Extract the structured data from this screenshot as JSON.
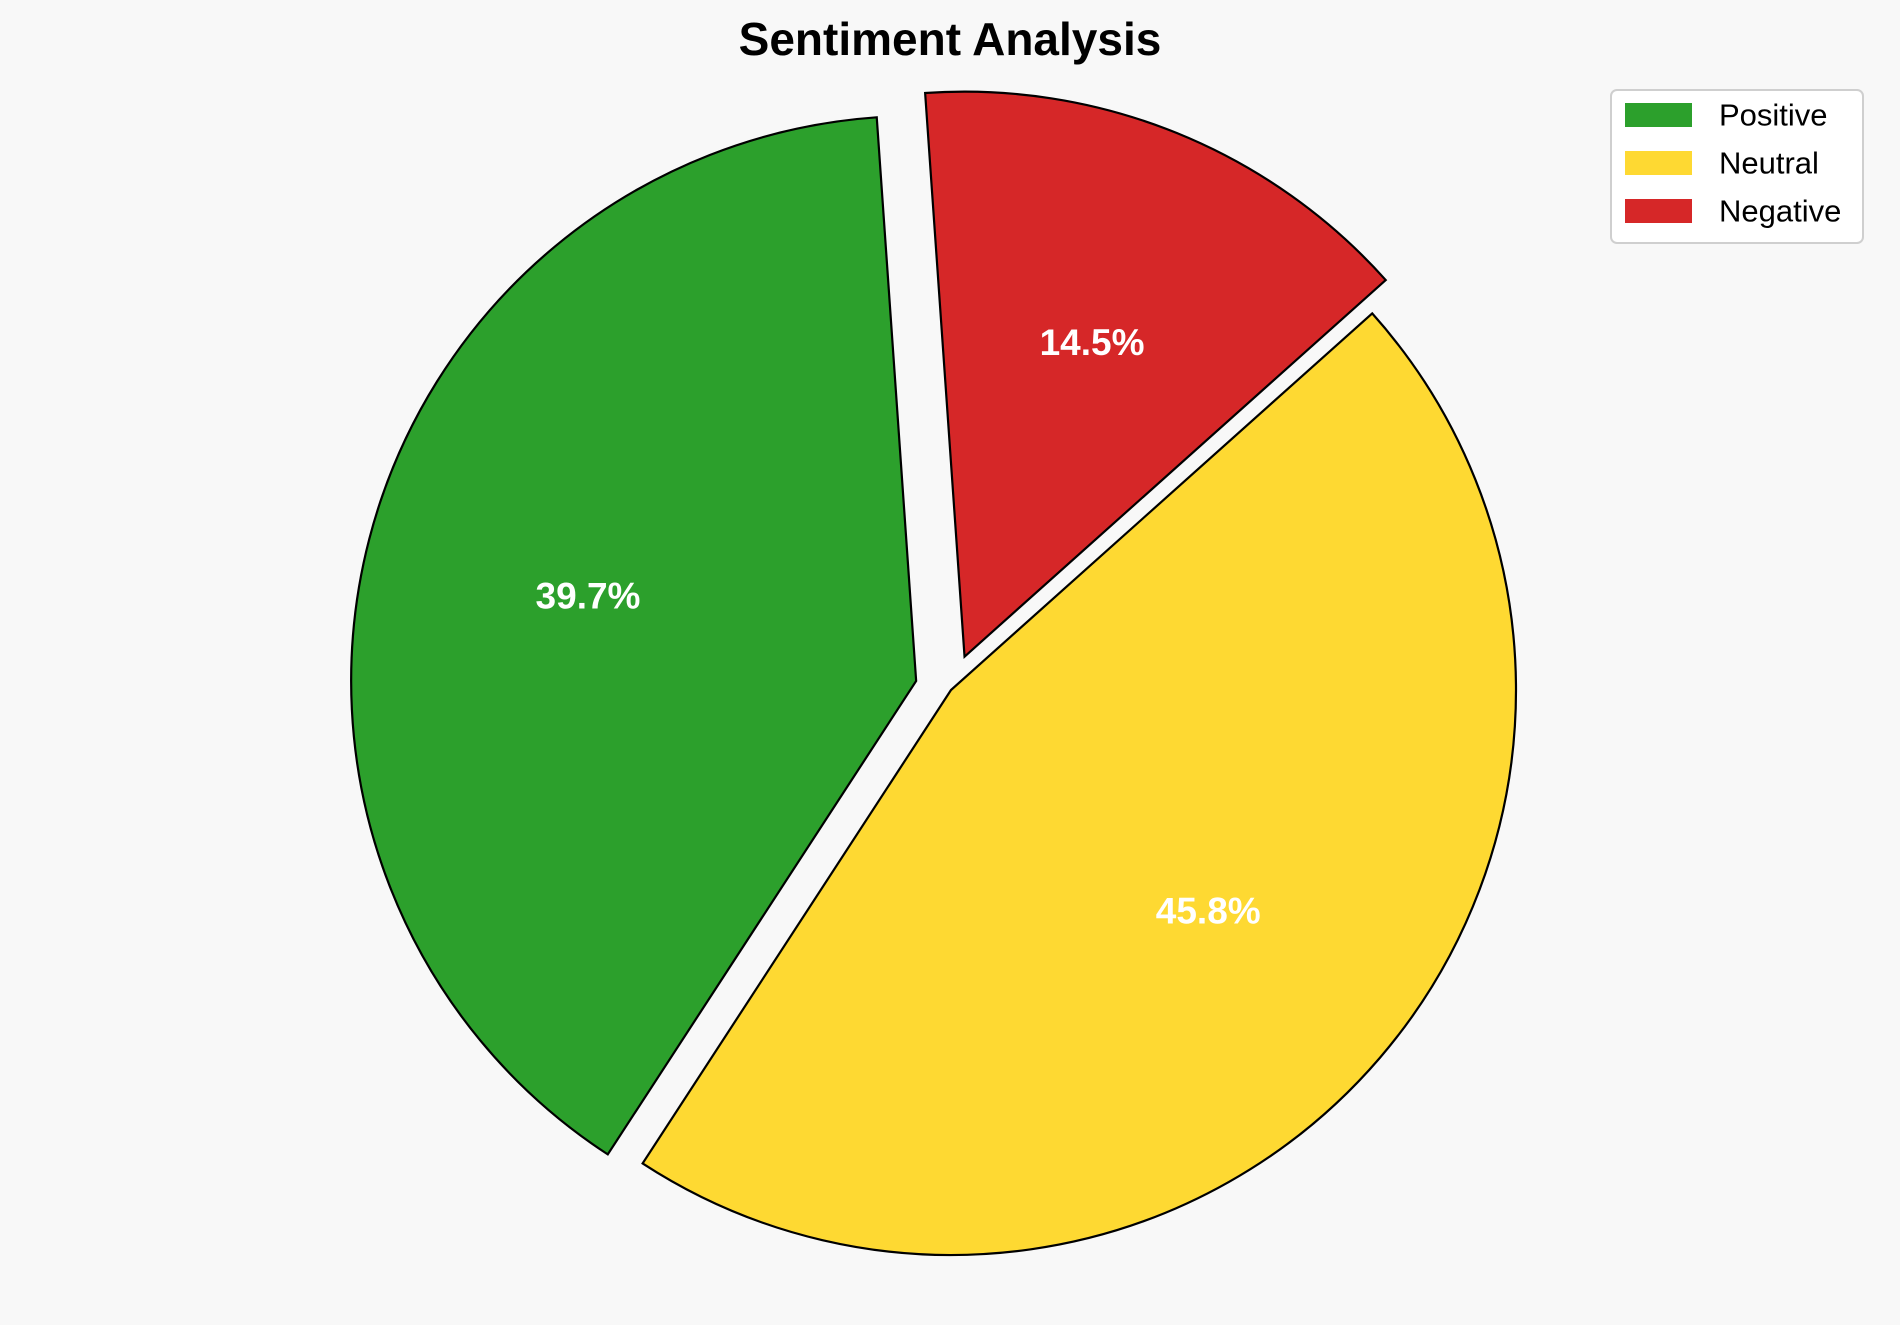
{
  "chart_data": {
    "type": "pie",
    "title": "Sentiment Analysis",
    "categories": [
      "Positive",
      "Neutral",
      "Negative"
    ],
    "values": [
      39.7,
      45.8,
      14.5
    ],
    "labels": [
      "39.7%",
      "45.8%",
      "14.5%"
    ],
    "colors": [
      "#2ca02c",
      "#fed932",
      "#d62728"
    ],
    "exploded": [
      true,
      false,
      true
    ],
    "legend": {
      "position": "top-right",
      "entries": [
        "Positive",
        "Neutral",
        "Negative"
      ]
    }
  }
}
